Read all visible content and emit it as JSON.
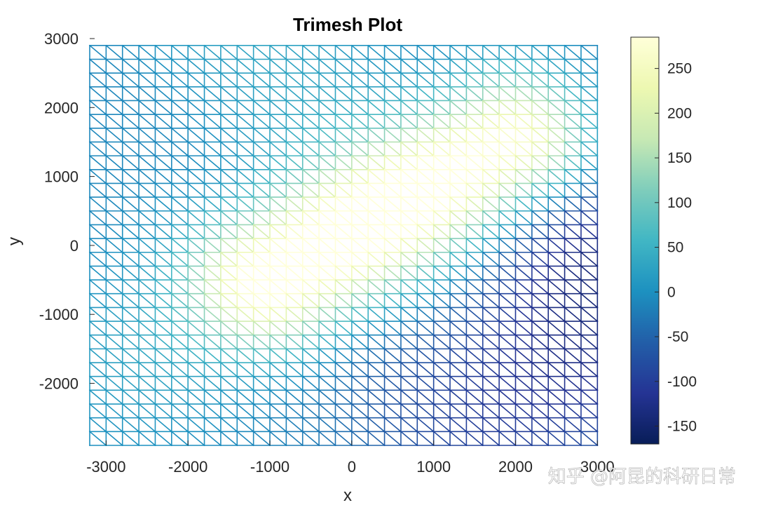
{
  "chart_data": {
    "type": "heatmap",
    "subtype": "trimesh",
    "title": "Trimesh Plot",
    "xlabel": "x",
    "ylabel": "y",
    "xlim": [
      -3200,
      3100
    ],
    "ylim": [
      -2900,
      3000
    ],
    "x_ticks": [
      -3000,
      -2000,
      -1000,
      0,
      1000,
      2000,
      3000
    ],
    "x_tick_labels": [
      "-3000",
      "-2000",
      "-1000",
      "0",
      "1000",
      "2000",
      "3000"
    ],
    "y_ticks": [
      -2000,
      -1000,
      0,
      1000,
      2000,
      3000
    ],
    "y_tick_labels": [
      "-2000",
      "-1000",
      "0",
      "1000",
      "2000",
      "3000"
    ],
    "mesh": {
      "x_start": -3200,
      "x_end": 3100,
      "x_step": 200,
      "y_start": -2900,
      "y_end": 3000,
      "y_step": 200,
      "triangle_diagonal": "top-left to bottom-right"
    },
    "z_description": "Ridge of high values along the diagonal from (-1000,-500) to (2000,1500) peaking near 280; low values near -160 in the lower-right corner",
    "z_features": {
      "ridge": {
        "start": [
          -1000,
          -500
        ],
        "end": [
          2000,
          1500
        ],
        "peak": 280
      },
      "minimum": {
        "location": "lower-right",
        "value": -160
      }
    },
    "colorbar": {
      "range": [
        -170,
        285
      ],
      "ticks": [
        250,
        200,
        150,
        100,
        50,
        0,
        -50,
        -100,
        -150
      ],
      "tick_labels": [
        "250",
        "200",
        "150",
        "100",
        "50",
        "0",
        "-50",
        "-100",
        "-150"
      ],
      "colormap": "YlGnBu",
      "colors": [
        "#081d58",
        "#253494",
        "#225ea8",
        "#1d91c0",
        "#41b6c4",
        "#7fcdbb",
        "#c7e9b4",
        "#edf8b1",
        "#ffffd9"
      ]
    },
    "grid": false
  },
  "watermark": "知乎 @阿昆的科研日常"
}
